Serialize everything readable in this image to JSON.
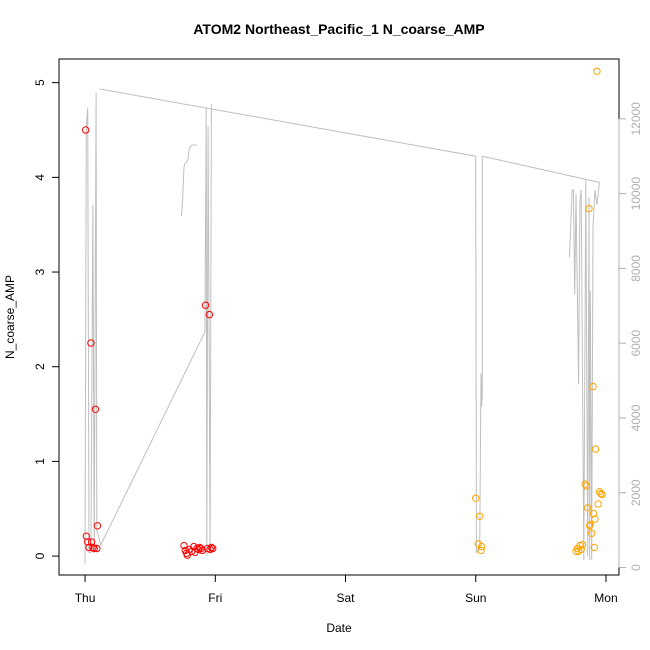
{
  "chart_data": {
    "type": "scatter",
    "title": "ATOM2 Northeast_Pacific_1 N_coarse_AMP",
    "xlabel": "Date",
    "ylabel": "N_coarse_AMP",
    "x_unit": "days since Thursday 00:00",
    "xlim": [
      -0.2,
      4.1
    ],
    "ylim": [
      -0.2,
      5.25
    ],
    "y_ticks": [
      0,
      1,
      2,
      3,
      4,
      5
    ],
    "x_ticks": [
      {
        "value": 0,
        "label": "Thu"
      },
      {
        "value": 1,
        "label": "Fri"
      },
      {
        "value": 2,
        "label": "Sat"
      },
      {
        "value": 3,
        "label": "Sun"
      },
      {
        "value": 4,
        "label": "Mon"
      }
    ],
    "y2_range": [
      -200,
      13600
    ],
    "y2_ticks": [
      0,
      2000,
      4000,
      6000,
      8000,
      10000,
      12000
    ],
    "grid": false,
    "legend": "none",
    "series": [
      {
        "color": "#ff0000",
        "points": [
          [
            0.005,
            4.5
          ],
          [
            0.01,
            0.21
          ],
          [
            0.02,
            0.15
          ],
          [
            0.03,
            0.09
          ],
          [
            0.045,
            2.25
          ],
          [
            0.05,
            0.15
          ],
          [
            0.06,
            0.09
          ],
          [
            0.07,
            0.08
          ],
          [
            0.08,
            1.55
          ],
          [
            0.095,
            0.32
          ],
          [
            0.09,
            0.08
          ],
          [
            0.76,
            0.11
          ],
          [
            0.77,
            0.06
          ],
          [
            0.78,
            0.03
          ],
          [
            0.785,
            0.01
          ],
          [
            0.8,
            0.07
          ],
          [
            0.82,
            0.05
          ],
          [
            0.835,
            0.1
          ],
          [
            0.845,
            0.04
          ],
          [
            0.86,
            0.08
          ],
          [
            0.87,
            0.07
          ],
          [
            0.88,
            0.09
          ],
          [
            0.89,
            0.08
          ],
          [
            0.9,
            0.06
          ],
          [
            0.925,
            2.65
          ],
          [
            0.94,
            0.08
          ],
          [
            0.955,
            2.55
          ],
          [
            0.96,
            0.07
          ],
          [
            0.97,
            0.09
          ],
          [
            0.98,
            0.08
          ]
        ]
      },
      {
        "color": "#ffa500",
        "points": [
          [
            3.0,
            0.61
          ],
          [
            3.02,
            0.13
          ],
          [
            3.03,
            0.42
          ],
          [
            3.04,
            0.06
          ],
          [
            3.045,
            0.1
          ],
          [
            3.77,
            0.05
          ],
          [
            3.78,
            0.08
          ],
          [
            3.79,
            0.05
          ],
          [
            3.8,
            0.11
          ],
          [
            3.81,
            0.07
          ],
          [
            3.82,
            0.12
          ],
          [
            3.84,
            0.76
          ],
          [
            3.85,
            0.74
          ],
          [
            3.86,
            0.51
          ],
          [
            3.87,
            3.67
          ],
          [
            3.875,
            0.32
          ],
          [
            3.88,
            0.33
          ],
          [
            3.89,
            0.24
          ],
          [
            3.9,
            1.79
          ],
          [
            3.905,
            0.45
          ],
          [
            3.91,
            0.09
          ],
          [
            3.915,
            0.39
          ],
          [
            3.92,
            1.13
          ],
          [
            3.93,
            5.12
          ],
          [
            3.94,
            0.55
          ],
          [
            3.95,
            0.68
          ],
          [
            3.96,
            0.66
          ],
          [
            3.97,
            0.65
          ]
        ]
      }
    ],
    "secondary_line": {
      "color": "#bfbfbf",
      "axis": "right",
      "points": [
        [
          0.0,
          100
        ],
        [
          0.01,
          11800
        ],
        [
          0.02,
          12300
        ],
        [
          0.03,
          400
        ],
        [
          0.045,
          400
        ],
        [
          0.06,
          9700
        ],
        [
          0.07,
          400
        ],
        [
          0.085,
          12700
        ],
        [
          0.09,
          1000
        ],
        [
          0.12,
          600
        ],
        [
          0.92,
          6300
        ],
        [
          0.93,
          12300
        ],
        [
          0.935,
          300
        ],
        [
          0.945,
          11800
        ],
        [
          0.96,
          400
        ],
        [
          0.97,
          12400
        ]
      ],
      "segments": [
        [
          [
            0.74,
            9400
          ],
          [
            0.745,
            9600
          ],
          [
            0.75,
            9900
          ],
          [
            0.76,
            10700
          ],
          [
            0.765,
            10800
          ],
          [
            0.79,
            10900
          ],
          [
            0.8,
            11200
          ],
          [
            0.82,
            11300
          ],
          [
            0.83,
            11300
          ],
          [
            0.86,
            11300
          ]
        ],
        [
          [
            0.11,
            12800
          ],
          [
            3.0,
            11000
          ],
          [
            3.005,
            400
          ],
          [
            3.03,
            500
          ],
          [
            3.04,
            5200
          ],
          [
            3.045,
            4300
          ],
          [
            3.05,
            4600
          ],
          [
            3.05,
            11000
          ],
          [
            3.95,
            10300
          ]
        ],
        [
          [
            3.72,
            8300
          ],
          [
            3.74,
            10100
          ],
          [
            3.75,
            10100
          ],
          [
            3.76,
            7300
          ],
          [
            3.77,
            10000
          ],
          [
            3.79,
            4900
          ],
          [
            3.8,
            9800
          ],
          [
            3.81,
            10100
          ],
          [
            3.83,
            200
          ],
          [
            3.845,
            10400
          ],
          [
            3.86,
            300
          ],
          [
            3.87,
            9900
          ],
          [
            3.875,
            200
          ],
          [
            3.88,
            7400
          ],
          [
            3.89,
            200
          ],
          [
            3.9,
            9100
          ],
          [
            3.915,
            10100
          ],
          [
            3.93,
            9700
          ],
          [
            3.95,
            10300
          ]
        ]
      ]
    }
  }
}
